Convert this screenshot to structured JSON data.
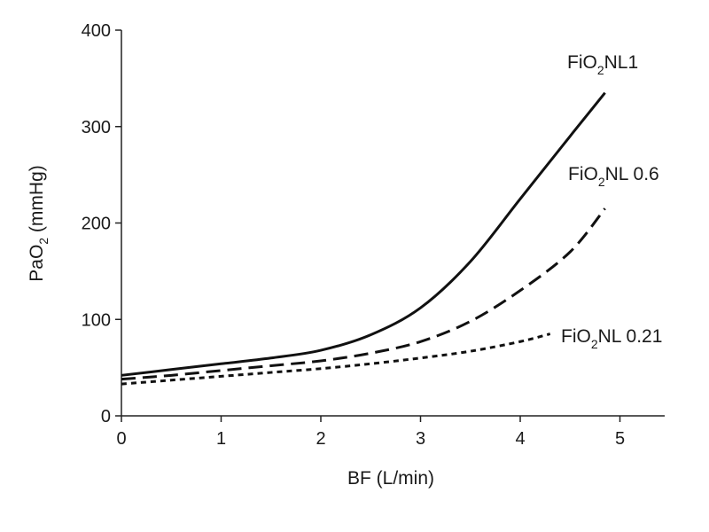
{
  "chart_data": {
    "type": "line",
    "xlabel": "BF (L/min)",
    "ylabel": {
      "main": "PaO",
      "sub": "2",
      "rest": " (mmHg)"
    },
    "xlim": [
      0,
      5.5
    ],
    "ylim": [
      0,
      400
    ],
    "xticks": [
      "0",
      "1",
      "2",
      "3",
      "4",
      "5"
    ],
    "yticks": [
      "0",
      "100",
      "200",
      "300",
      "400"
    ],
    "grid": false,
    "legend": "inline labels at line ends",
    "series": [
      {
        "name": {
          "main": "FiO",
          "sub": "2",
          "rest": "NL1"
        },
        "style": "solid",
        "color": "#111111",
        "x": [
          0,
          0.5,
          1,
          1.5,
          2,
          2.5,
          3,
          3.5,
          4,
          4.5,
          4.85
        ],
        "y": [
          42,
          48,
          54,
          60,
          68,
          84,
          112,
          160,
          225,
          290,
          335
        ]
      },
      {
        "name": {
          "main": "FiO",
          "sub": "2",
          "rest": "NL 0.6"
        },
        "style": "dashed",
        "color": "#111111",
        "x": [
          0,
          0.5,
          1,
          1.5,
          2,
          2.5,
          3,
          3.5,
          4,
          4.5,
          4.85
        ],
        "y": [
          38,
          42,
          47,
          52,
          57,
          65,
          77,
          98,
          130,
          170,
          215
        ]
      },
      {
        "name": {
          "main": "FiO",
          "sub": "2",
          "rest": "NL 0.21"
        },
        "style": "dotted",
        "color": "#111111",
        "x": [
          0,
          0.5,
          1,
          1.5,
          2,
          2.5,
          3,
          3.5,
          4,
          4.3
        ],
        "y": [
          33,
          37,
          41,
          45,
          49,
          54,
          60,
          67,
          77,
          85
        ]
      }
    ]
  }
}
